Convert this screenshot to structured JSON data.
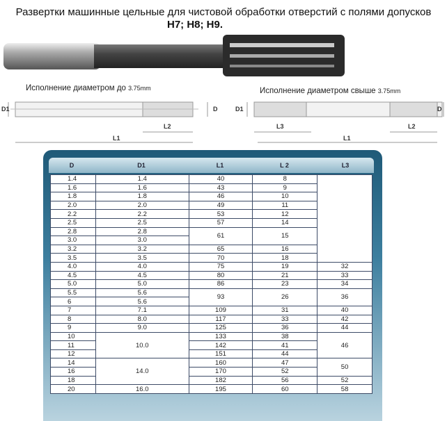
{
  "title": "Развертки машинные цельные для чистовой обработки отверстий с полями допусков",
  "subtitle": "H7; H8; H9.",
  "diagram_left": {
    "caption": "Исполнение диаметром до",
    "size": "3.75mm",
    "labels": {
      "d1": "D1",
      "d": "D",
      "l2": "L2",
      "l1": "L1"
    }
  },
  "diagram_right": {
    "caption": "Исполнение диаметром свыше",
    "size": "3.75mm",
    "labels": {
      "d1": "D1",
      "d": "D",
      "l3": "L3",
      "l2": "L2",
      "l1": "L1"
    }
  },
  "table": {
    "headers": [
      "D",
      "D1",
      "L1",
      "L 2",
      "L3"
    ],
    "rows": [
      [
        {
          "v": "1.4"
        },
        {
          "v": "1.4"
        },
        {
          "v": "40"
        },
        {
          "v": "8"
        },
        {
          "v": "",
          "rows": 10
        }
      ],
      [
        {
          "v": "1.6"
        },
        {
          "v": "1.6"
        },
        {
          "v": "43"
        },
        {
          "v": "9"
        }
      ],
      [
        {
          "v": "1.8"
        },
        {
          "v": "1.8"
        },
        {
          "v": "46"
        },
        {
          "v": "10"
        }
      ],
      [
        {
          "v": "2.0"
        },
        {
          "v": "2.0"
        },
        {
          "v": "49"
        },
        {
          "v": "11"
        }
      ],
      [
        {
          "v": "2.2"
        },
        {
          "v": "2.2"
        },
        {
          "v": "53"
        },
        {
          "v": "12"
        }
      ],
      [
        {
          "v": "2.5"
        },
        {
          "v": "2.5"
        },
        {
          "v": "57"
        },
        {
          "v": "14"
        }
      ],
      [
        {
          "v": "2.8"
        },
        {
          "v": "2.8"
        },
        {
          "v": "61",
          "rows": 2
        },
        {
          "v": "15",
          "rows": 2
        }
      ],
      [
        {
          "v": "3.0"
        },
        {
          "v": "3.0"
        }
      ],
      [
        {
          "v": "3.2"
        },
        {
          "v": "3.2"
        },
        {
          "v": "65"
        },
        {
          "v": "16"
        }
      ],
      [
        {
          "v": "3.5"
        },
        {
          "v": "3.5"
        },
        {
          "v": "70"
        },
        {
          "v": "18"
        }
      ],
      [
        {
          "v": "4.0"
        },
        {
          "v": "4.0"
        },
        {
          "v": "75"
        },
        {
          "v": "19"
        },
        {
          "v": "32"
        }
      ],
      [
        {
          "v": "4.5"
        },
        {
          "v": "4.5"
        },
        {
          "v": "80"
        },
        {
          "v": "21"
        },
        {
          "v": "33"
        }
      ],
      [
        {
          "v": "5.0"
        },
        {
          "v": "5.0"
        },
        {
          "v": "86"
        },
        {
          "v": "23"
        },
        {
          "v": "34"
        }
      ],
      [
        {
          "v": "5.5"
        },
        {
          "v": "5.6"
        },
        {
          "v": "93",
          "rows": 2
        },
        {
          "v": "26",
          "rows": 2
        },
        {
          "v": "36",
          "rows": 2
        }
      ],
      [
        {
          "v": "6"
        },
        {
          "v": "5.6"
        }
      ],
      [
        {
          "v": "7"
        },
        {
          "v": "7.1"
        },
        {
          "v": "109"
        },
        {
          "v": "31"
        },
        {
          "v": "40"
        }
      ],
      [
        {
          "v": "8"
        },
        {
          "v": "8.0"
        },
        {
          "v": "117"
        },
        {
          "v": "33"
        },
        {
          "v": "42"
        }
      ],
      [
        {
          "v": "9"
        },
        {
          "v": "9.0"
        },
        {
          "v": "125"
        },
        {
          "v": "36"
        },
        {
          "v": "44"
        }
      ],
      [
        {
          "v": "10"
        },
        {
          "v": "10.0",
          "rows": 3
        },
        {
          "v": "133"
        },
        {
          "v": "38"
        },
        {
          "v": "46",
          "rows": 3
        }
      ],
      [
        {
          "v": "11"
        },
        {
          "v": "142"
        },
        {
          "v": "41"
        }
      ],
      [
        {
          "v": "12"
        },
        {
          "v": "151"
        },
        {
          "v": "44"
        }
      ],
      [
        {
          "v": "14"
        },
        {
          "v": "14.0",
          "rows": 3
        },
        {
          "v": "160"
        },
        {
          "v": "47"
        },
        {
          "v": "50",
          "rows": 2
        }
      ],
      [
        {
          "v": "16"
        },
        {
          "v": "170"
        },
        {
          "v": "52"
        }
      ],
      [
        {
          "v": "18"
        },
        {
          "v": "182"
        },
        {
          "v": "56"
        },
        {
          "v": "52"
        }
      ],
      [
        {
          "v": "20"
        },
        {
          "v": "16.0"
        },
        {
          "v": "195"
        },
        {
          "v": "60"
        },
        {
          "v": "58"
        }
      ]
    ]
  }
}
